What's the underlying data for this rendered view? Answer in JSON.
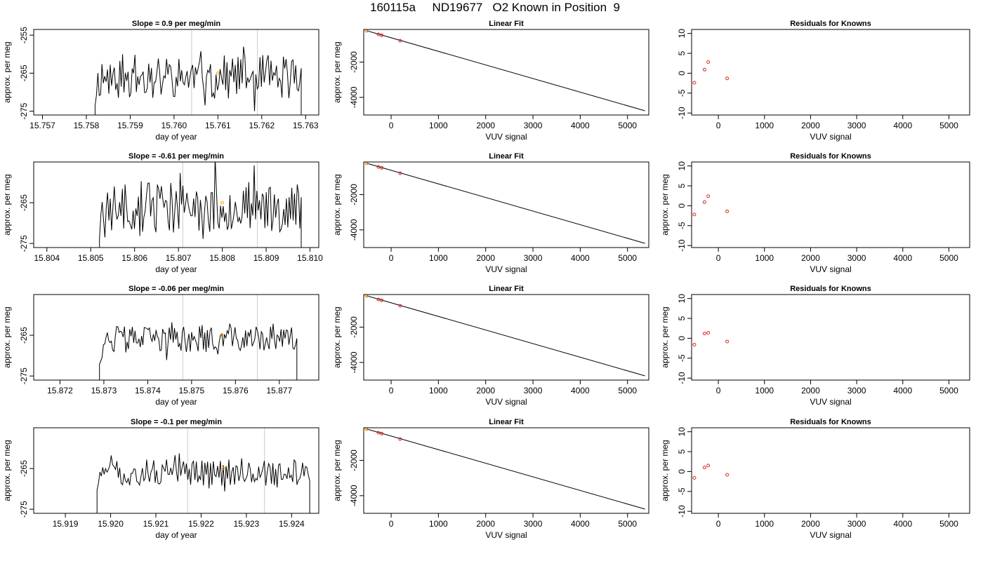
{
  "figure_title": "160115a     ND19677   O2 Known in Position  9",
  "colors": {
    "line": "#000000",
    "vline": "#d3d3d3",
    "known": "#d62b1e",
    "highlight": "#ff9900"
  },
  "chart_data": [
    {
      "type": "line",
      "title": "Slope =  0.9  per meg/min",
      "xlabel": "day of year",
      "ylabel": "approx. per meg",
      "xlim": [
        15.7568,
        15.7633
      ],
      "ylim": [
        -276,
        -253.5
      ],
      "xticks": [
        "15.757",
        "15.758",
        "15.759",
        "15.760",
        "15.761",
        "15.762",
        "15.763"
      ],
      "yticks": [
        "-255",
        "-265",
        "-275"
      ],
      "x_start": 15.7582,
      "x_end": 15.7629,
      "vlines": [
        15.7604,
        15.7619
      ],
      "highlight": [
        15.761,
        -265
      ],
      "base": -266,
      "amp": 4.2,
      "seed": 11
    },
    {
      "type": "line",
      "title": "Linear Fit",
      "xlabel": "VUV signal",
      "ylabel": "approx. per meg",
      "xlim": [
        -580,
        5450
      ],
      "ylim": [
        -5000,
        -150
      ],
      "xticks": [
        "0",
        "1000",
        "2000",
        "3000",
        "4000",
        "5000"
      ],
      "yticks": [
        "-2000",
        "-4000"
      ],
      "fit_line": [
        [
          -520,
          -220
        ],
        [
          5370,
          -4760
        ]
      ],
      "points": [
        [
          -520,
          -220
        ],
        [
          -270,
          -430
        ],
        [
          -200,
          -480
        ],
        [
          190,
          -790
        ]
      ],
      "highlight": [
        -520,
        -220
      ]
    },
    {
      "type": "scatter",
      "title": "Residuals for Knowns",
      "xlabel": "VUV signal",
      "ylabel": "",
      "xlim": [
        -580,
        5450
      ],
      "ylim": [
        -10.5,
        11
      ],
      "xticks": [
        "0",
        "1000",
        "2000",
        "3000",
        "4000",
        "5000"
      ],
      "yticks": [
        "10",
        "5",
        "0",
        "-5",
        "-10"
      ],
      "points": [
        [
          -520,
          -2.4
        ],
        [
          -300,
          0.9
        ],
        [
          -220,
          2.8
        ],
        [
          190,
          -1.3
        ]
      ]
    },
    {
      "type": "line",
      "title": "Slope =  -0.61  per meg/min",
      "xlabel": "day of year",
      "ylabel": "approx. per meg",
      "xlim": [
        15.8037,
        15.8102
      ],
      "ylim": [
        -276,
        -255
      ],
      "xticks": [
        "15.804",
        "15.805",
        "15.806",
        "15.807",
        "15.808",
        "15.809",
        "15.810"
      ],
      "yticks": [
        "-265",
        "-275"
      ],
      "x_start": 15.8052,
      "x_end": 15.8098,
      "vlines": [
        15.8071,
        15.8088
      ],
      "highlight": [
        15.808,
        -265
      ],
      "base": -266,
      "amp": 4.5,
      "seed": 23
    },
    {
      "type": "line",
      "title": "Linear Fit",
      "xlabel": "VUV signal",
      "ylabel": "approx. per meg",
      "xlim": [
        -580,
        5450
      ],
      "ylim": [
        -5000,
        -150
      ],
      "xticks": [
        "0",
        "1000",
        "2000",
        "3000",
        "4000",
        "5000"
      ],
      "yticks": [
        "-2000",
        "-4000"
      ],
      "fit_line": [
        [
          -520,
          -220
        ],
        [
          5370,
          -4760
        ]
      ],
      "points": [
        [
          -520,
          -220
        ],
        [
          -270,
          -430
        ],
        [
          -200,
          -480
        ],
        [
          190,
          -790
        ]
      ],
      "highlight": [
        -520,
        -220
      ]
    },
    {
      "type": "scatter",
      "title": "Residuals for Knowns",
      "xlabel": "VUV signal",
      "ylabel": "approx. per meg",
      "xlim": [
        -580,
        5450
      ],
      "ylim": [
        -10.5,
        11
      ],
      "xticks": [
        "0",
        "1000",
        "2000",
        "3000",
        "4000",
        "5000"
      ],
      "yticks": [
        "10",
        "5",
        "0",
        "-5",
        "-10"
      ],
      "points": [
        [
          -520,
          -2.2
        ],
        [
          -300,
          0.9
        ],
        [
          -220,
          2.4
        ],
        [
          190,
          -1.4
        ]
      ]
    },
    {
      "type": "line",
      "title": "Slope =  -0.06  per meg/min",
      "xlabel": "day of year",
      "ylabel": "approx. per meg",
      "xlim": [
        15.8714,
        15.8779
      ],
      "ylim": [
        -276,
        -255
      ],
      "xticks": [
        "15.872",
        "15.873",
        "15.874",
        "15.875",
        "15.876",
        "15.877"
      ],
      "yticks": [
        "-265",
        "-275"
      ],
      "x_start": 15.8729,
      "x_end": 15.8774,
      "vlines": [
        15.8748,
        15.8765
      ],
      "highlight": [
        15.8757,
        -265
      ],
      "base": -266,
      "amp": 2.3,
      "seed": 37
    },
    {
      "type": "line",
      "title": "Linear Fit",
      "xlabel": "VUV signal",
      "ylabel": "approx. per meg",
      "xlim": [
        -580,
        5450
      ],
      "ylim": [
        -5000,
        -150
      ],
      "xticks": [
        "0",
        "1000",
        "2000",
        "3000",
        "4000",
        "5000"
      ],
      "yticks": [
        "-2000",
        "-4000"
      ],
      "fit_line": [
        [
          -520,
          -220
        ],
        [
          5370,
          -4760
        ]
      ],
      "points": [
        [
          -520,
          -220
        ],
        [
          -270,
          -430
        ],
        [
          -200,
          -480
        ],
        [
          190,
          -790
        ]
      ],
      "highlight": [
        -520,
        -220
      ]
    },
    {
      "type": "scatter",
      "title": "Residuals for Knowns",
      "xlabel": "VUV signal",
      "ylabel": "approx. per meg",
      "xlim": [
        -580,
        5450
      ],
      "ylim": [
        -10.5,
        11
      ],
      "xticks": [
        "0",
        "1000",
        "2000",
        "3000",
        "4000",
        "5000"
      ],
      "yticks": [
        "10",
        "5",
        "0",
        "-5",
        "-10"
      ],
      "points": [
        [
          -520,
          -1.6
        ],
        [
          -300,
          1.2
        ],
        [
          -220,
          1.4
        ],
        [
          190,
          -0.8
        ]
      ]
    },
    {
      "type": "line",
      "title": "Slope =  -0.1  per meg/min",
      "xlabel": "day of year",
      "ylabel": "approx. per meg",
      "xlim": [
        15.9183,
        15.9246
      ],
      "ylim": [
        -276,
        -255
      ],
      "xticks": [
        "15.919",
        "15.920",
        "15.921",
        "15.922",
        "15.923",
        "15.924"
      ],
      "yticks": [
        "-265",
        "-275"
      ],
      "x_start": 15.9197,
      "x_end": 15.9244,
      "vlines": [
        15.9217,
        15.9234
      ],
      "highlight": [
        15.9225,
        -265
      ],
      "base": -266,
      "amp": 2.3,
      "seed": 51
    },
    {
      "type": "line",
      "title": "Linear Fit",
      "xlabel": "VUV signal",
      "ylabel": "approx. per meg",
      "xlim": [
        -580,
        5450
      ],
      "ylim": [
        -5000,
        -150
      ],
      "xticks": [
        "0",
        "1000",
        "2000",
        "3000",
        "4000",
        "5000"
      ],
      "yticks": [
        "-2000",
        "-4000"
      ],
      "fit_line": [
        [
          -520,
          -220
        ],
        [
          5370,
          -4760
        ]
      ],
      "points": [
        [
          -520,
          -220
        ],
        [
          -270,
          -430
        ],
        [
          -200,
          -480
        ],
        [
          190,
          -790
        ]
      ],
      "highlight": [
        -520,
        -220
      ]
    },
    {
      "type": "scatter",
      "title": "Residuals for Knowns",
      "xlabel": "VUV signal",
      "ylabel": "approx. per meg",
      "xlim": [
        -580,
        5450
      ],
      "ylim": [
        -10.5,
        11
      ],
      "xticks": [
        "0",
        "1000",
        "2000",
        "3000",
        "4000",
        "5000"
      ],
      "yticks": [
        "10",
        "5",
        "0",
        "-5",
        "-10"
      ],
      "points": [
        [
          -520,
          -1.6
        ],
        [
          -300,
          1.0
        ],
        [
          -220,
          1.5
        ],
        [
          190,
          -0.8
        ]
      ]
    }
  ]
}
